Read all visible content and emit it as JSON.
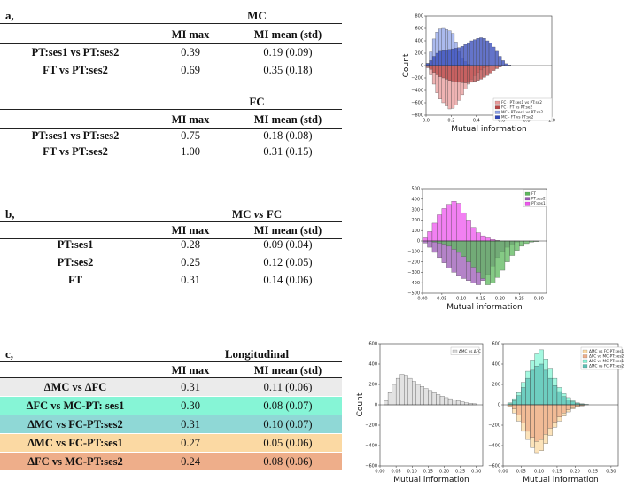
{
  "panel_a": {
    "letter": "a,",
    "mc": {
      "title": "MC",
      "headers": [
        "MI max",
        "MI mean (std)"
      ],
      "rows": [
        {
          "label": "PT:ses1 vs PT:ses2",
          "max": "0.39",
          "mean": "0.19 (0.09)"
        },
        {
          "label": "FT vs PT:ses2",
          "max": "0.69",
          "mean": "0.35 (0.18)"
        }
      ]
    },
    "fc": {
      "title": "FC",
      "headers": [
        "MI max",
        "MI mean (std)"
      ],
      "rows": [
        {
          "label": "PT:ses1 vs PT:ses2",
          "max": "0.75",
          "mean": "0.18 (0.08)"
        },
        {
          "label": "FT vs PT:ses2",
          "max": "1.00",
          "mean": "0.31 (0.15)"
        }
      ]
    }
  },
  "panel_b": {
    "letter": "b,",
    "title_pre": "MC ",
    "title_vs": "vs",
    "title_post": " FC",
    "headers": [
      "MI max",
      "MI mean (std)"
    ],
    "rows": [
      {
        "label": "PT:ses1",
        "max": "0.28",
        "mean": "0.09 (0.04)"
      },
      {
        "label": "PT:ses2",
        "max": "0.25",
        "mean": "0.12 (0.05)"
      },
      {
        "label": "FT",
        "max": "0.31",
        "mean": "0.14 (0.06)"
      }
    ]
  },
  "panel_c": {
    "letter": "c,",
    "title": "Longitudinal",
    "headers": [
      "MI max",
      "MI mean (std)"
    ],
    "rows": [
      {
        "label": "ΔMC vs ΔFC",
        "max": "0.31",
        "mean": "0.11 (0.06)",
        "color": "#ebebeb"
      },
      {
        "label": "ΔFC vs MC-PT: ses1",
        "max": "0.30",
        "mean": "0.08 (0.07)",
        "color": "#86f5d6"
      },
      {
        "label": "ΔMC vs FC-PT:ses2",
        "max": "0.31",
        "mean": "0.10 (0.07)",
        "color": "#8fd8d6"
      },
      {
        "label": "ΔMC vs FC-PT:ses1",
        "max": "0.27",
        "mean": "0.05 (0.06)",
        "color": "#fbd9a3"
      },
      {
        "label": "ΔFC vs MC-PT:ses2",
        "max": "0.24",
        "mean": "0.08 (0.06)",
        "color": "#eeae8a"
      }
    ]
  },
  "chart_data": [
    {
      "type": "bar",
      "title": "",
      "xlabel": "Mutual information",
      "ylabel": "Count",
      "xlim": [
        0,
        1.0
      ],
      "ylim": [
        -800,
        800
      ],
      "xticks": [
        "0.0",
        "0.2",
        "0.4",
        "0.6",
        "0.8",
        "1.0"
      ],
      "yticks": [
        "800",
        "600",
        "400",
        "200",
        "0",
        "−200",
        "−400",
        "−600",
        "−800"
      ],
      "legend": [
        "FC - PT:ses1 vs PT:se2",
        "FC - FT vs PT:se2",
        "MC - PT:ses1 vs PT:se2",
        "MC - FT vs PT:se2"
      ],
      "colors": [
        "#e89a9a",
        "#b84545",
        "#8fa3e8",
        "#3046b8"
      ],
      "bin_width": 0.025,
      "x": [
        0.0,
        0.025,
        0.05,
        0.075,
        0.1,
        0.125,
        0.15,
        0.175,
        0.2,
        0.225,
        0.25,
        0.275,
        0.3,
        0.325,
        0.35,
        0.375,
        0.4,
        0.425,
        0.45,
        0.475,
        0.5,
        0.525,
        0.55,
        0.575,
        0.6,
        0.625,
        0.65,
        0.675,
        0.7
      ],
      "series": [
        {
          "name": "MC - PT:ses1 vs PT:se2",
          "values": [
            40,
            220,
            430,
            540,
            590,
            600,
            580,
            560,
            520,
            380,
            220,
            120,
            60,
            20,
            5,
            0,
            0,
            0,
            0,
            0,
            0,
            0,
            0,
            0,
            0,
            0,
            0,
            0,
            0
          ]
        },
        {
          "name": "MC - FT vs PT:se2",
          "values": [
            30,
            80,
            150,
            200,
            230,
            240,
            250,
            260,
            270,
            280,
            290,
            310,
            340,
            370,
            400,
            420,
            440,
            450,
            440,
            400,
            360,
            300,
            230,
            150,
            80,
            30,
            10,
            0,
            0
          ]
        },
        {
          "name": "FC - PT:ses1 vs PT:se2",
          "values": [
            -40,
            -150,
            -300,
            -440,
            -540,
            -600,
            -650,
            -700,
            -690,
            -640,
            -560,
            -470,
            -380,
            -300,
            -220,
            -160,
            -110,
            -70,
            -40,
            -20,
            -5,
            0,
            0,
            0,
            0,
            0,
            0,
            0,
            0
          ]
        },
        {
          "name": "FC - FT vs PT:se2",
          "values": [
            -20,
            -60,
            -110,
            -150,
            -180,
            -200,
            -220,
            -240,
            -250,
            -260,
            -270,
            -275,
            -280,
            -275,
            -270,
            -255,
            -240,
            -220,
            -190,
            -160,
            -120,
            -80,
            -50,
            -25,
            -10,
            0,
            0,
            0,
            0
          ]
        }
      ]
    },
    {
      "type": "bar",
      "title": "",
      "xlabel": "Mutual information",
      "ylabel": "",
      "xlim": [
        0,
        0.32
      ],
      "ylim": [
        -500,
        500
      ],
      "xticks": [
        "0.00",
        "0.05",
        "0.10",
        "0.15",
        "0.20",
        "0.25",
        "0.30"
      ],
      "yticks": [
        "500",
        "400",
        "300",
        "200",
        "100",
        "0",
        "−100",
        "−200",
        "−300",
        "−400",
        "−500"
      ],
      "legend": [
        "FT",
        "PT:ses2",
        "PT:ses1"
      ],
      "colors": [
        "#5cb85c",
        "#9b59b6",
        "#ee55ee"
      ],
      "bin_width": 0.0125,
      "x": [
        0.0,
        0.0125,
        0.025,
        0.0375,
        0.05,
        0.0625,
        0.075,
        0.0875,
        0.1,
        0.1125,
        0.125,
        0.1375,
        0.15,
        0.1625,
        0.175,
        0.1875,
        0.2,
        0.2125,
        0.225,
        0.2375,
        0.25,
        0.2625,
        0.275,
        0.2875,
        0.3
      ],
      "series": [
        {
          "name": "PT:ses1",
          "values": [
            30,
            90,
            170,
            250,
            310,
            350,
            380,
            360,
            270,
            200,
            130,
            80,
            50,
            30,
            15,
            5,
            0,
            0,
            0,
            0,
            0,
            0,
            0,
            0,
            0
          ]
        },
        {
          "name": "PT:ses2",
          "values": [
            -20,
            -60,
            -110,
            -160,
            -210,
            -260,
            -300,
            -330,
            -360,
            -380,
            -400,
            -420,
            -380,
            -320,
            -240,
            -160,
            -100,
            -60,
            -30,
            -10,
            0,
            0,
            0,
            0,
            0
          ]
        },
        {
          "name": "FT",
          "values": [
            0,
            0,
            -10,
            -20,
            -30,
            -50,
            -80,
            -110,
            -150,
            -200,
            -250,
            -300,
            -360,
            -420,
            -400,
            -350,
            -280,
            -200,
            -140,
            -90,
            -50,
            -25,
            -10,
            -5,
            0
          ]
        }
      ]
    },
    {
      "type": "bar",
      "title": "",
      "xlabel": "Mutual information",
      "ylabel": "Count",
      "xlim": [
        0,
        0.32
      ],
      "ylim": [
        -600,
        600
      ],
      "xticks": [
        "0.00",
        "0.05",
        "0.10",
        "0.15",
        "0.20",
        "0.25",
        "0.30"
      ],
      "yticks": [
        "600",
        "400",
        "200",
        "0",
        "−200",
        "−400",
        "−600"
      ],
      "legend": [
        "ΔMC vs ΔFC"
      ],
      "colors": [
        "#d8d8d8"
      ],
      "bin_width": 0.0125,
      "x": [
        0.0,
        0.0125,
        0.025,
        0.0375,
        0.05,
        0.0625,
        0.075,
        0.0875,
        0.1,
        0.1125,
        0.125,
        0.1375,
        0.15,
        0.1625,
        0.175,
        0.1875,
        0.2,
        0.2125,
        0.225,
        0.2375,
        0.25,
        0.2625,
        0.275,
        0.2875,
        0.3
      ],
      "series": [
        {
          "name": "ΔMC vs ΔFC",
          "values": [
            0,
            40,
            120,
            200,
            260,
            300,
            290,
            260,
            230,
            200,
            180,
            160,
            140,
            120,
            100,
            85,
            70,
            60,
            50,
            40,
            30,
            20,
            15,
            10,
            0
          ]
        }
      ]
    },
    {
      "type": "bar",
      "title": "",
      "xlabel": "Mutual information",
      "ylabel": "",
      "xlim": [
        0,
        0.32
      ],
      "ylim": [
        -600,
        600
      ],
      "xticks": [
        "0.00",
        "0.05",
        "0.10",
        "0.15",
        "0.20",
        "0.25",
        "0.30"
      ],
      "yticks": [
        "600",
        "400",
        "200",
        "0",
        "−200",
        "−400",
        "−600"
      ],
      "legend": [
        "ΔMC vs FC-PT:ses1",
        "ΔFC vs MC-PT:ses2",
        "ΔFC vs MC-PT:ses1",
        "ΔMC vs FC-PT:ses2"
      ],
      "colors": [
        "#fbd9a3",
        "#eeae8a",
        "#86f5d6",
        "#5cc0b5"
      ],
      "bin_width": 0.0125,
      "x": [
        0.0,
        0.0125,
        0.025,
        0.0375,
        0.05,
        0.0625,
        0.075,
        0.0875,
        0.1,
        0.1125,
        0.125,
        0.1375,
        0.15,
        0.1625,
        0.175,
        0.1875,
        0.2,
        0.2125,
        0.225,
        0.2375,
        0.25,
        0.2625,
        0.275,
        0.2875,
        0.3
      ],
      "series": [
        {
          "name": "ΔFC vs MC-PT:ses1",
          "values": [
            0,
            20,
            60,
            120,
            220,
            330,
            440,
            500,
            540,
            450,
            360,
            260,
            170,
            110,
            70,
            40,
            20,
            10,
            5,
            0,
            0,
            0,
            0,
            0,
            0
          ]
        },
        {
          "name": "ΔMC vs FC-PT:ses2",
          "values": [
            0,
            10,
            40,
            90,
            170,
            260,
            340,
            380,
            400,
            340,
            260,
            190,
            130,
            80,
            50,
            30,
            15,
            5,
            0,
            0,
            0,
            0,
            0,
            0,
            0
          ]
        },
        {
          "name": "ΔMC vs FC-PT:ses1",
          "values": [
            0,
            -20,
            -80,
            -160,
            -260,
            -340,
            -420,
            -470,
            -450,
            -380,
            -300,
            -220,
            -160,
            -110,
            -70,
            -40,
            -20,
            -10,
            0,
            0,
            0,
            0,
            0,
            0,
            0
          ]
        },
        {
          "name": "ΔFC vs MC-PT:ses2",
          "values": [
            0,
            -10,
            -40,
            -100,
            -180,
            -260,
            -320,
            -360,
            -340,
            -290,
            -230,
            -170,
            -120,
            -80,
            -50,
            -30,
            -15,
            -5,
            0,
            0,
            0,
            0,
            0,
            0,
            0
          ]
        }
      ]
    }
  ]
}
